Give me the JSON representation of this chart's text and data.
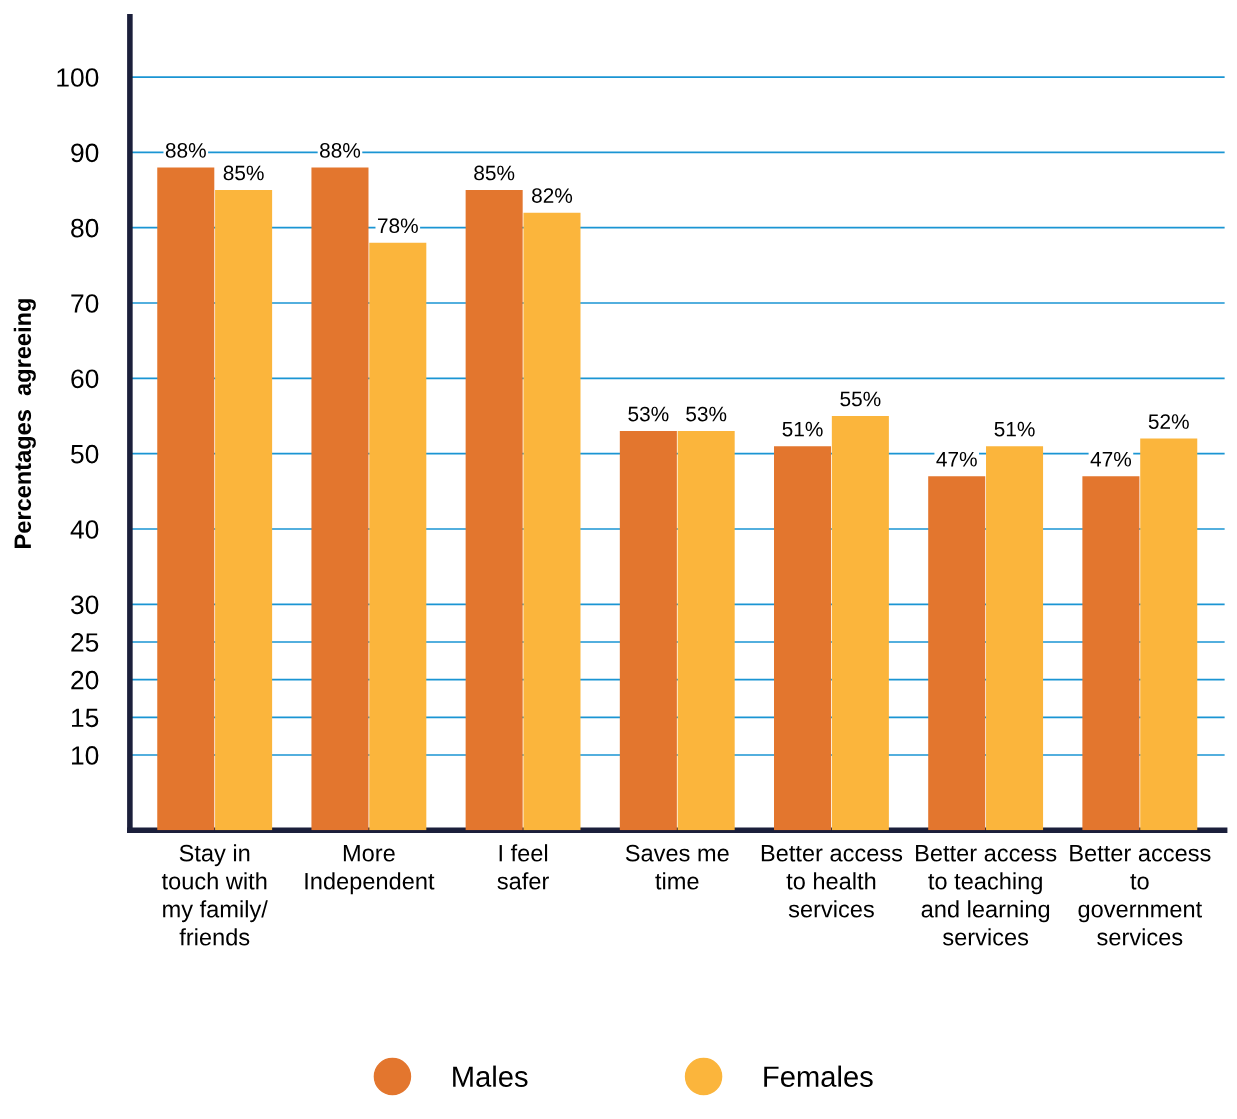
{
  "chart_data": {
    "type": "bar",
    "ylabel": "Percentages  agreeing",
    "categories": [
      "Stay in\ntouch with\nmy family/\nfriends",
      "More\nIndependent",
      "I feel\nsafer",
      "Saves me\ntime",
      "Better access\nto health\nservices",
      "Better access\nto teaching\nand learning\nservices",
      "Better access\nto\ngovernment\nservices"
    ],
    "series": [
      {
        "name": "Males",
        "color": "#e3762e",
        "values": [
          88,
          88,
          85,
          53,
          51,
          47,
          47
        ],
        "value_labels": [
          "88%",
          "88%",
          "85%",
          "53%",
          "51%",
          "47%",
          "47%"
        ]
      },
      {
        "name": "Females",
        "color": "#fbb53c",
        "values": [
          85,
          78,
          82,
          53,
          55,
          51,
          52
        ],
        "value_labels": [
          "85%",
          "78%",
          "82%",
          "53%",
          "55%",
          "51%",
          "52%"
        ]
      }
    ],
    "ylim": [
      0,
      108
    ],
    "yticks": [
      10,
      15,
      20,
      25,
      30,
      40,
      50,
      60,
      70,
      80,
      90,
      100
    ],
    "grid": "y",
    "legend": "bottom"
  }
}
